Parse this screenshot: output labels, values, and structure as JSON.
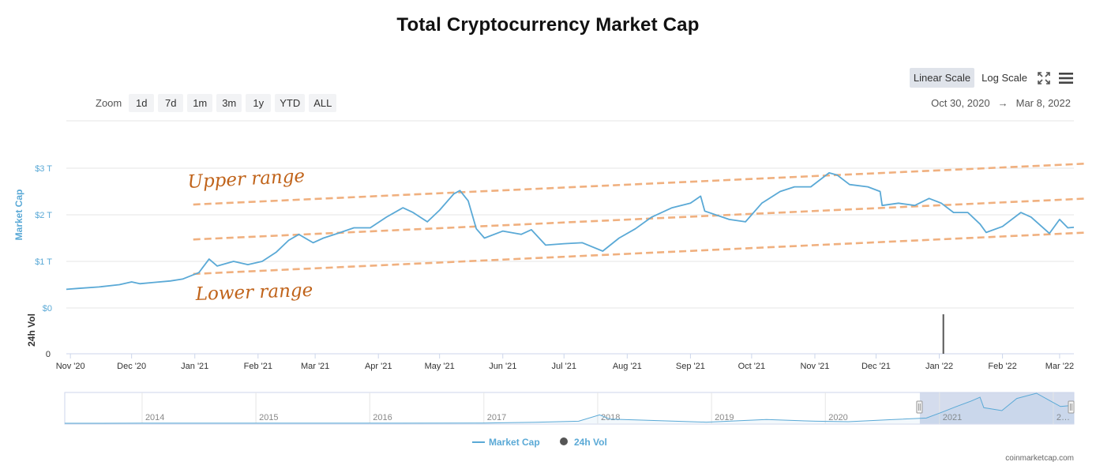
{
  "header": {
    "title": "Total Cryptocurrency Market Cap"
  },
  "toolbar": {
    "linear_label": "Linear Scale",
    "log_label": "Log Scale",
    "fullscreen_icon": "fullscreen-icon",
    "menu_icon": "hamburger-menu-icon"
  },
  "zoom": {
    "label": "Zoom",
    "options": [
      "1d",
      "7d",
      "1m",
      "3m",
      "1y",
      "YTD",
      "ALL"
    ]
  },
  "range": {
    "from": "Oct 30, 2020",
    "arrow": "→",
    "to": "Mar 8, 2022"
  },
  "legend": {
    "market_cap": "Market Cap",
    "vol": "24h Vol"
  },
  "footer": {
    "credit": "coinmarketcap.com"
  },
  "annotations": {
    "upper": "Upper range",
    "lower": "Lower range"
  },
  "colors": {
    "line": "#5aa9d6",
    "channel": "#f0b07f",
    "annotation": "#c0631a",
    "axis_label": "#5aa9d6",
    "navigator_mask": "#cdd6ea"
  },
  "chart_data": {
    "type": "line",
    "title": "Total Cryptocurrency Market Cap",
    "ylabel": "Market Cap",
    "ylabel2": "24h Vol",
    "y_ticks": [
      "$0",
      "$1 T",
      "$2 T",
      "$3 T"
    ],
    "vol_ticks": [
      "0"
    ],
    "x_ticks": [
      "Nov '20",
      "Dec '20",
      "Jan '21",
      "Feb '21",
      "Mar '21",
      "Apr '21",
      "May '21",
      "Jun '21",
      "Jul '21",
      "Aug '21",
      "Sep '21",
      "Oct '21",
      "Nov '21",
      "Dec '21",
      "Jan '22",
      "Feb '22",
      "Mar '22"
    ],
    "ylim": [
      0,
      3.3
    ],
    "xlim": [
      "2020-10-30",
      "2022-03-08"
    ],
    "series": [
      {
        "name": "Market Cap",
        "unit": "T USD",
        "points": [
          [
            "2020-10-30",
            0.4
          ],
          [
            "2020-11-05",
            0.42
          ],
          [
            "2020-11-15",
            0.45
          ],
          [
            "2020-11-25",
            0.5
          ],
          [
            "2020-12-01",
            0.56
          ],
          [
            "2020-12-05",
            0.52
          ],
          [
            "2020-12-12",
            0.55
          ],
          [
            "2020-12-20",
            0.58
          ],
          [
            "2020-12-26",
            0.62
          ],
          [
            "2021-01-03",
            0.76
          ],
          [
            "2021-01-08",
            1.05
          ],
          [
            "2021-01-12",
            0.9
          ],
          [
            "2021-01-20",
            1.0
          ],
          [
            "2021-01-27",
            0.93
          ],
          [
            "2021-02-03",
            1.0
          ],
          [
            "2021-02-10",
            1.2
          ],
          [
            "2021-02-16",
            1.45
          ],
          [
            "2021-02-21",
            1.58
          ],
          [
            "2021-02-28",
            1.4
          ],
          [
            "2021-03-05",
            1.5
          ],
          [
            "2021-03-12",
            1.6
          ],
          [
            "2021-03-20",
            1.72
          ],
          [
            "2021-03-28",
            1.72
          ],
          [
            "2021-04-05",
            1.95
          ],
          [
            "2021-04-13",
            2.15
          ],
          [
            "2021-04-18",
            2.05
          ],
          [
            "2021-04-25",
            1.85
          ],
          [
            "2021-05-01",
            2.1
          ],
          [
            "2021-05-08",
            2.45
          ],
          [
            "2021-05-11",
            2.52
          ],
          [
            "2021-05-15",
            2.3
          ],
          [
            "2021-05-19",
            1.7
          ],
          [
            "2021-05-23",
            1.5
          ],
          [
            "2021-06-01",
            1.65
          ],
          [
            "2021-06-10",
            1.58
          ],
          [
            "2021-06-15",
            1.68
          ],
          [
            "2021-06-22",
            1.35
          ],
          [
            "2021-07-01",
            1.38
          ],
          [
            "2021-07-10",
            1.4
          ],
          [
            "2021-07-20",
            1.22
          ],
          [
            "2021-07-28",
            1.5
          ],
          [
            "2021-08-05",
            1.7
          ],
          [
            "2021-08-13",
            1.95
          ],
          [
            "2021-08-23",
            2.15
          ],
          [
            "2021-09-01",
            2.25
          ],
          [
            "2021-09-06",
            2.4
          ],
          [
            "2021-09-08",
            2.08
          ],
          [
            "2021-09-20",
            1.9
          ],
          [
            "2021-09-28",
            1.85
          ],
          [
            "2021-10-06",
            2.25
          ],
          [
            "2021-10-15",
            2.5
          ],
          [
            "2021-10-22",
            2.6
          ],
          [
            "2021-10-30",
            2.6
          ],
          [
            "2021-11-08",
            2.9
          ],
          [
            "2021-11-12",
            2.85
          ],
          [
            "2021-11-18",
            2.65
          ],
          [
            "2021-11-27",
            2.6
          ],
          [
            "2021-12-03",
            2.5
          ],
          [
            "2021-12-04",
            2.2
          ],
          [
            "2021-12-12",
            2.25
          ],
          [
            "2021-12-20",
            2.2
          ],
          [
            "2021-12-27",
            2.35
          ],
          [
            "2022-01-02",
            2.25
          ],
          [
            "2022-01-08",
            2.05
          ],
          [
            "2022-01-15",
            2.05
          ],
          [
            "2022-01-21",
            1.8
          ],
          [
            "2022-01-24",
            1.62
          ],
          [
            "2022-02-01",
            1.75
          ],
          [
            "2022-02-10",
            2.05
          ],
          [
            "2022-02-15",
            1.95
          ],
          [
            "2022-02-24",
            1.6
          ],
          [
            "2022-03-01",
            1.9
          ],
          [
            "2022-03-05",
            1.72
          ],
          [
            "2022-03-08",
            1.73
          ]
        ]
      },
      {
        "name": "24h Vol",
        "points": [
          [
            "2022-01-03",
            1.0
          ]
        ]
      }
    ],
    "channel_lines": [
      {
        "label": "Upper range",
        "from": [
          "2021-01-01",
          2.22
        ],
        "to": [
          "2022-03-08",
          3.08
        ]
      },
      {
        "label": "",
        "from": [
          "2021-01-01",
          1.47
        ],
        "to": [
          "2022-03-08",
          2.33
        ]
      },
      {
        "label": "Lower range",
        "from": [
          "2021-01-01",
          0.73
        ],
        "to": [
          "2022-03-08",
          1.6
        ]
      }
    ],
    "navigator": {
      "year_labels": [
        "2014",
        "2015",
        "2016",
        "2017",
        "2018",
        "2019",
        "2020",
        "2021",
        "2…"
      ],
      "points": [
        [
          "2013-04-28",
          0.002
        ],
        [
          "2014-01-01",
          0.01
        ],
        [
          "2015-01-01",
          0.004
        ],
        [
          "2016-01-01",
          0.007
        ],
        [
          "2017-01-01",
          0.018
        ],
        [
          "2017-06-15",
          0.1
        ],
        [
          "2017-11-01",
          0.2
        ],
        [
          "2018-01-07",
          0.81
        ],
        [
          "2018-02-10",
          0.4
        ],
        [
          "2018-06-01",
          0.3
        ],
        [
          "2018-12-15",
          0.11
        ],
        [
          "2019-06-26",
          0.36
        ],
        [
          "2019-12-01",
          0.2
        ],
        [
          "2020-03-15",
          0.15
        ],
        [
          "2020-08-01",
          0.35
        ],
        [
          "2020-11-20",
          0.5
        ],
        [
          "2021-01-08",
          1.05
        ],
        [
          "2021-02-21",
          1.58
        ],
        [
          "2021-04-13",
          2.15
        ],
        [
          "2021-05-11",
          2.52
        ],
        [
          "2021-05-23",
          1.5
        ],
        [
          "2021-07-20",
          1.22
        ],
        [
          "2021-09-06",
          2.4
        ],
        [
          "2021-11-08",
          2.9
        ],
        [
          "2021-12-20",
          2.2
        ],
        [
          "2022-01-24",
          1.62
        ],
        [
          "2022-03-08",
          1.73
        ]
      ]
    },
    "legend_position": "bottom-center",
    "grid": true
  }
}
